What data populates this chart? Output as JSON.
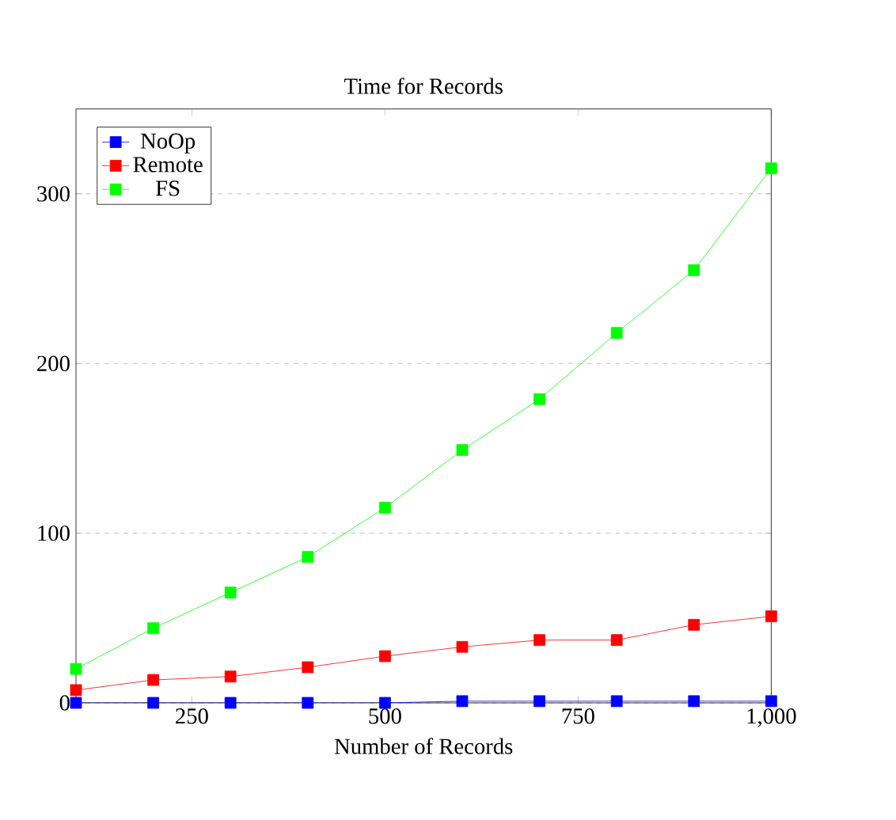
{
  "chart_data": {
    "type": "line",
    "title": "Time for Records",
    "xlabel": "Number of Records",
    "x": [
      100,
      200,
      300,
      400,
      500,
      600,
      700,
      800,
      900,
      1000
    ],
    "series": [
      {
        "name": "NoOp",
        "color": "#0000ff",
        "values": [
          0,
          0,
          0,
          0,
          0,
          1,
          1,
          1,
          1,
          1
        ]
      },
      {
        "name": "Remote",
        "color": "#ff0000",
        "values": [
          7.5,
          13.5,
          15.5,
          21,
          27.5,
          33,
          37,
          37,
          46,
          51
        ]
      },
      {
        "name": "FS",
        "color": "#00ff00",
        "values": [
          20,
          44,
          65,
          86,
          115,
          149,
          179,
          218,
          255,
          315
        ]
      }
    ],
    "xlim": [
      100,
      1000
    ],
    "ylim": [
      0,
      350
    ],
    "xticks": [
      250,
      500,
      750,
      {
        "value": 1000,
        "label": "1,000"
      }
    ],
    "yticks": [
      0,
      100,
      200,
      300
    ],
    "grid": "y",
    "legend": "top left",
    "marker": "square",
    "line_style": "solid"
  }
}
